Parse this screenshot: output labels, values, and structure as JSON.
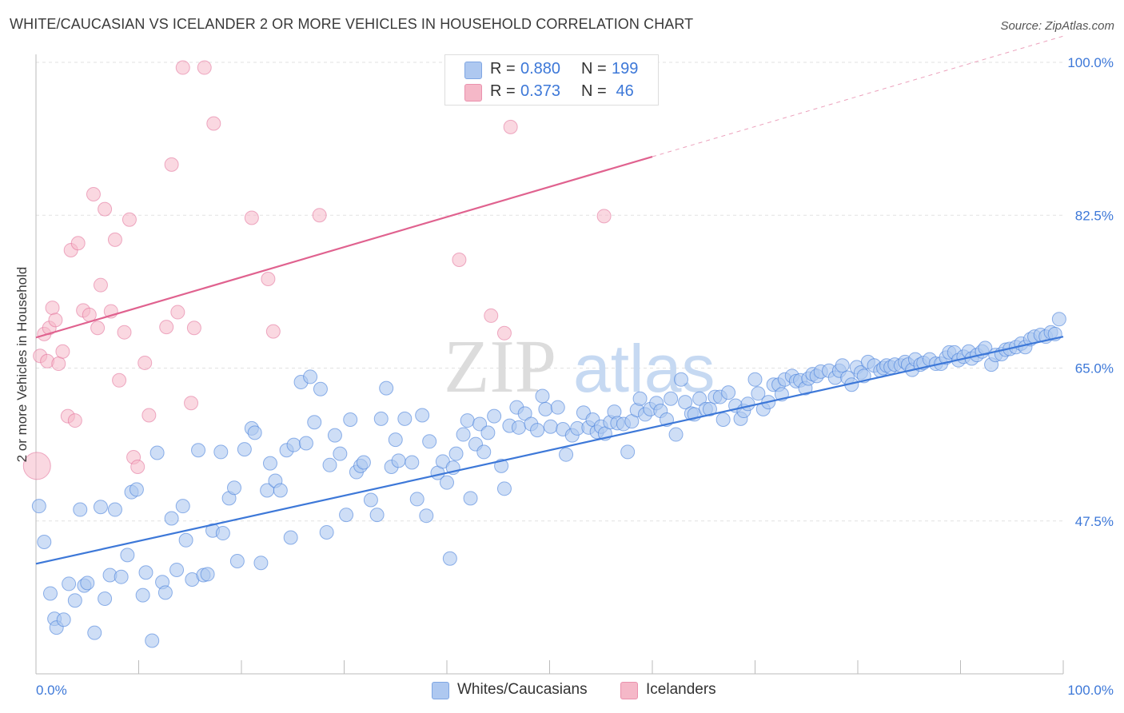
{
  "header": {
    "title": "WHITE/CAUCASIAN VS ICELANDER 2 OR MORE VEHICLES IN HOUSEHOLD CORRELATION CHART",
    "source": "Source: ZipAtlas.com"
  },
  "watermark": {
    "zip": "ZIP",
    "atlas": "atlas"
  },
  "legend": {
    "rows": [
      {
        "r_label": "R =",
        "r_value": "0.880",
        "n_label": "N =",
        "n_value": "199",
        "color": "#aec8f0"
      },
      {
        "r_label": "R =",
        "r_value": "0.373",
        "n_label": "N =",
        "n_value": " 46",
        "color": "#f5b8c8"
      }
    ]
  },
  "bottom_legend": {
    "items": [
      {
        "label": "Whites/Caucasians",
        "color": "#aec8f0"
      },
      {
        "label": "Icelanders",
        "color": "#f5b8c8"
      }
    ]
  },
  "chart_data": {
    "type": "scatter",
    "title": "WHITE/CAUCASIAN VS ICELANDER 2 OR MORE VEHICLES IN HOUSEHOLD CORRELATION CHART",
    "xlabel": "",
    "ylabel": "2 or more Vehicles in Household",
    "xlim": [
      0,
      100
    ],
    "ylim": [
      30,
      100
    ],
    "x_tick_labels": [
      "0.0%",
      "100.0%"
    ],
    "y_ticks": [
      47.5,
      65.0,
      82.5,
      100.0
    ],
    "y_tick_labels": [
      "47.5%",
      "65.0%",
      "82.5%",
      "100.0%"
    ],
    "grid": true,
    "legend_position": "top-center",
    "colors": {
      "white": "#3d78d8",
      "white_fill": "#aec8f0",
      "iceland": "#e0628f",
      "iceland_fill": "#f5b8c8"
    },
    "series": [
      {
        "name": "Whites/Caucasians",
        "trend": {
          "x": [
            0,
            100
          ],
          "y": [
            42.6,
            68.6
          ]
        },
        "points": [
          [
            0.3,
            49.2
          ],
          [
            0.8,
            45.1
          ],
          [
            1.4,
            39.2
          ],
          [
            1.8,
            36.3
          ],
          [
            2.0,
            35.3
          ],
          [
            2.7,
            36.2
          ],
          [
            3.2,
            40.3
          ],
          [
            3.8,
            38.4
          ],
          [
            4.3,
            48.8
          ],
          [
            4.7,
            40.1
          ],
          [
            5.0,
            40.4
          ],
          [
            5.7,
            34.7
          ],
          [
            6.3,
            49.1
          ],
          [
            6.7,
            38.6
          ],
          [
            7.2,
            41.3
          ],
          [
            7.7,
            48.8
          ],
          [
            8.3,
            41.1
          ],
          [
            8.9,
            43.6
          ],
          [
            9.3,
            50.8
          ],
          [
            9.8,
            51.1
          ],
          [
            10.4,
            39.0
          ],
          [
            10.7,
            41.6
          ],
          [
            11.3,
            33.8
          ],
          [
            11.8,
            55.3
          ],
          [
            12.3,
            40.5
          ],
          [
            12.6,
            39.3
          ],
          [
            13.2,
            47.8
          ],
          [
            13.7,
            41.9
          ],
          [
            14.3,
            49.2
          ],
          [
            14.6,
            45.3
          ],
          [
            15.2,
            40.8
          ],
          [
            15.8,
            55.6
          ],
          [
            16.3,
            41.3
          ],
          [
            16.7,
            41.4
          ],
          [
            17.2,
            46.4
          ],
          [
            18.0,
            55.4
          ],
          [
            18.2,
            46.1
          ],
          [
            18.8,
            50.1
          ],
          [
            19.3,
            51.3
          ],
          [
            19.6,
            42.9
          ],
          [
            20.3,
            55.7
          ],
          [
            21.0,
            58.1
          ],
          [
            21.3,
            57.6
          ],
          [
            21.9,
            42.7
          ],
          [
            22.5,
            51.0
          ],
          [
            22.8,
            54.1
          ],
          [
            23.3,
            52.1
          ],
          [
            23.8,
            51.0
          ],
          [
            24.4,
            55.6
          ],
          [
            24.8,
            45.6
          ],
          [
            25.1,
            56.2
          ],
          [
            25.8,
            63.4
          ],
          [
            26.3,
            56.4
          ],
          [
            26.7,
            64.0
          ],
          [
            27.1,
            58.8
          ],
          [
            27.7,
            62.6
          ],
          [
            28.3,
            46.2
          ],
          [
            28.6,
            53.9
          ],
          [
            29.1,
            57.3
          ],
          [
            29.6,
            55.2
          ],
          [
            30.2,
            48.2
          ],
          [
            30.6,
            59.1
          ],
          [
            31.2,
            53.1
          ],
          [
            31.6,
            53.8
          ],
          [
            31.9,
            54.2
          ],
          [
            32.6,
            49.9
          ],
          [
            33.2,
            48.2
          ],
          [
            33.6,
            59.2
          ],
          [
            34.1,
            62.7
          ],
          [
            34.6,
            53.7
          ],
          [
            35.0,
            56.8
          ],
          [
            35.3,
            54.4
          ],
          [
            35.9,
            59.2
          ],
          [
            36.6,
            54.2
          ],
          [
            37.1,
            50.0
          ],
          [
            37.6,
            59.6
          ],
          [
            38.0,
            48.1
          ],
          [
            38.3,
            56.6
          ],
          [
            39.1,
            53.0
          ],
          [
            39.6,
            54.3
          ],
          [
            40.0,
            51.9
          ],
          [
            40.3,
            43.2
          ],
          [
            40.6,
            53.6
          ],
          [
            40.9,
            55.2
          ],
          [
            41.6,
            57.4
          ],
          [
            42.0,
            59.0
          ],
          [
            42.3,
            50.1
          ],
          [
            42.8,
            56.3
          ],
          [
            43.2,
            58.6
          ],
          [
            43.6,
            55.4
          ],
          [
            44.0,
            57.6
          ],
          [
            44.6,
            59.5
          ],
          [
            45.3,
            53.8
          ],
          [
            45.6,
            51.2
          ],
          [
            46.1,
            58.4
          ],
          [
            46.8,
            60.5
          ],
          [
            47.0,
            58.2
          ],
          [
            47.6,
            59.8
          ],
          [
            48.2,
            58.6
          ],
          [
            48.8,
            57.9
          ],
          [
            49.3,
            61.8
          ],
          [
            49.6,
            60.3
          ],
          [
            50.1,
            58.3
          ],
          [
            50.8,
            60.5
          ],
          [
            51.3,
            58.0
          ],
          [
            51.6,
            55.1
          ],
          [
            52.2,
            57.3
          ],
          [
            52.7,
            58.1
          ],
          [
            53.3,
            59.9
          ],
          [
            53.8,
            58.2
          ],
          [
            54.2,
            59.1
          ],
          [
            54.6,
            57.7
          ],
          [
            55.0,
            58.3
          ],
          [
            55.4,
            57.5
          ],
          [
            55.9,
            58.8
          ],
          [
            56.3,
            60.0
          ],
          [
            56.6,
            58.7
          ],
          [
            57.2,
            58.6
          ],
          [
            57.6,
            55.4
          ],
          [
            58.0,
            58.9
          ],
          [
            58.5,
            60.2
          ],
          [
            58.8,
            61.5
          ],
          [
            59.3,
            59.7
          ],
          [
            59.8,
            60.3
          ],
          [
            60.4,
            61.0
          ],
          [
            60.8,
            60.1
          ],
          [
            61.4,
            59.1
          ],
          [
            61.8,
            61.5
          ],
          [
            62.3,
            57.4
          ],
          [
            62.8,
            63.7
          ],
          [
            63.2,
            61.1
          ],
          [
            63.8,
            59.8
          ],
          [
            64.1,
            59.7
          ],
          [
            64.6,
            61.5
          ],
          [
            65.2,
            60.3
          ],
          [
            65.6,
            60.3
          ],
          [
            66.1,
            61.7
          ],
          [
            66.6,
            61.7
          ],
          [
            66.9,
            59.1
          ],
          [
            67.4,
            62.2
          ],
          [
            68.1,
            60.7
          ],
          [
            68.6,
            59.2
          ],
          [
            68.9,
            60.1
          ],
          [
            69.3,
            60.9
          ],
          [
            70.0,
            63.7
          ],
          [
            70.3,
            62.1
          ],
          [
            70.8,
            60.3
          ],
          [
            71.3,
            61.1
          ],
          [
            71.8,
            63.1
          ],
          [
            72.3,
            63.1
          ],
          [
            72.6,
            62.0
          ],
          [
            72.9,
            63.7
          ],
          [
            73.6,
            64.1
          ],
          [
            74.0,
            63.5
          ],
          [
            74.4,
            63.6
          ],
          [
            74.9,
            62.7
          ],
          [
            75.2,
            63.8
          ],
          [
            75.6,
            64.3
          ],
          [
            76.0,
            64.1
          ],
          [
            76.4,
            64.6
          ],
          [
            77.2,
            64.7
          ],
          [
            77.8,
            63.9
          ],
          [
            78.2,
            64.7
          ],
          [
            78.5,
            65.3
          ],
          [
            79.0,
            63.9
          ],
          [
            79.4,
            63.1
          ],
          [
            79.9,
            65.1
          ],
          [
            80.3,
            64.5
          ],
          [
            80.6,
            64.1
          ],
          [
            81.0,
            65.7
          ],
          [
            81.6,
            65.3
          ],
          [
            82.2,
            64.7
          ],
          [
            82.5,
            65.0
          ],
          [
            82.8,
            65.3
          ],
          [
            83.2,
            65.1
          ],
          [
            83.6,
            65.4
          ],
          [
            84.2,
            65.3
          ],
          [
            84.6,
            65.7
          ],
          [
            84.9,
            65.4
          ],
          [
            85.3,
            64.8
          ],
          [
            85.6,
            66.0
          ],
          [
            86.1,
            65.4
          ],
          [
            86.4,
            65.6
          ],
          [
            87.0,
            66.0
          ],
          [
            87.6,
            65.5
          ],
          [
            88.1,
            65.5
          ],
          [
            88.6,
            66.2
          ],
          [
            88.9,
            66.8
          ],
          [
            89.4,
            66.8
          ],
          [
            89.8,
            65.9
          ],
          [
            90.3,
            66.3
          ],
          [
            90.8,
            66.9
          ],
          [
            91.1,
            66.1
          ],
          [
            91.6,
            66.5
          ],
          [
            92.1,
            66.9
          ],
          [
            92.4,
            67.3
          ],
          [
            93.0,
            65.4
          ],
          [
            93.4,
            66.5
          ],
          [
            94.0,
            66.6
          ],
          [
            94.4,
            67.1
          ],
          [
            94.8,
            67.2
          ],
          [
            95.4,
            67.4
          ],
          [
            95.9,
            67.8
          ],
          [
            96.3,
            67.4
          ],
          [
            96.8,
            68.3
          ],
          [
            97.2,
            68.6
          ],
          [
            97.8,
            68.8
          ],
          [
            98.3,
            68.6
          ],
          [
            98.8,
            69.1
          ],
          [
            99.2,
            68.9
          ],
          [
            99.6,
            70.6
          ]
        ]
      },
      {
        "name": "Icelanders",
        "trend": {
          "x": [
            0,
            60
          ],
          "y": [
            68.5,
            89.2
          ]
        },
        "trend_dashed": {
          "x": [
            60,
            100
          ],
          "y": [
            89.2,
            103.0
          ]
        },
        "points": [
          [
            0.1,
            53.8
          ],
          [
            0.4,
            66.4
          ],
          [
            0.8,
            68.9
          ],
          [
            1.1,
            65.8
          ],
          [
            1.3,
            69.6
          ],
          [
            1.6,
            71.9
          ],
          [
            1.9,
            70.5
          ],
          [
            2.2,
            65.5
          ],
          [
            2.6,
            66.9
          ],
          [
            3.1,
            59.5
          ],
          [
            3.4,
            78.5
          ],
          [
            3.8,
            59.0
          ],
          [
            4.1,
            79.3
          ],
          [
            4.6,
            71.6
          ],
          [
            5.2,
            71.1
          ],
          [
            5.6,
            84.9
          ],
          [
            6.0,
            69.6
          ],
          [
            6.3,
            74.5
          ],
          [
            6.7,
            83.2
          ],
          [
            7.3,
            71.5
          ],
          [
            7.7,
            79.7
          ],
          [
            8.1,
            63.6
          ],
          [
            8.6,
            69.1
          ],
          [
            9.1,
            82.0
          ],
          [
            9.5,
            54.8
          ],
          [
            9.9,
            53.7
          ],
          [
            10.6,
            65.6
          ],
          [
            11.0,
            59.6
          ],
          [
            12.7,
            69.7
          ],
          [
            13.2,
            88.3
          ],
          [
            13.8,
            71.4
          ],
          [
            14.3,
            99.4
          ],
          [
            15.1,
            61.0
          ],
          [
            15.4,
            69.6
          ],
          [
            16.4,
            99.4
          ],
          [
            17.3,
            93.0
          ],
          [
            21.0,
            82.2
          ],
          [
            22.6,
            75.2
          ],
          [
            23.1,
            69.2
          ],
          [
            27.6,
            82.5
          ],
          [
            41.2,
            77.4
          ],
          [
            44.3,
            71.0
          ],
          [
            45.6,
            69.0
          ],
          [
            46.2,
            92.6
          ],
          [
            46.8,
            99.4
          ],
          [
            55.3,
            82.4
          ]
        ]
      }
    ]
  }
}
